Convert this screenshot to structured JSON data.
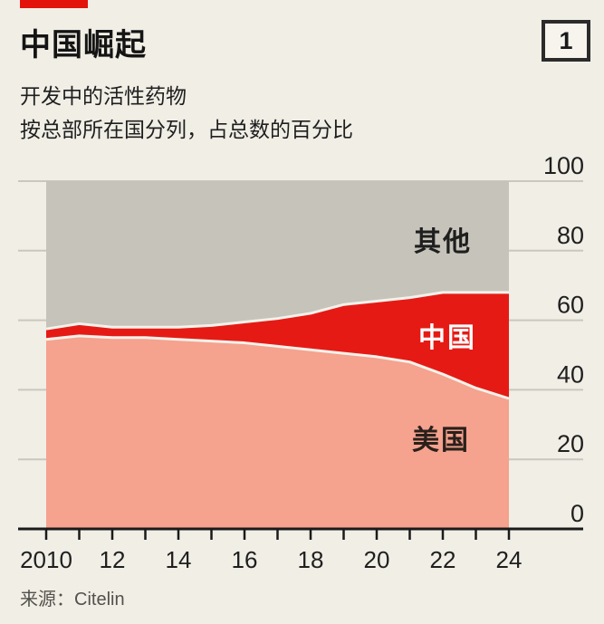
{
  "header": {
    "title": "中国崛起",
    "badge": "1"
  },
  "subtitle": {
    "line1": "开发中的活性药物",
    "line2": "按总部所在国分列，占总数的百分比"
  },
  "footer": {
    "source": "来源：Citelin"
  },
  "colors": {
    "background": "#f0eee5",
    "accent_red": "#e3120b",
    "area_us": "#f5a28f",
    "area_china": "#e61a15",
    "area_others": "#c5c3ba",
    "separator": "#f4f2ea",
    "gridline": "#c9c7bf",
    "axis": "#1a1a1a",
    "text_dark": "#1f1f1f",
    "label_on_red": "#ffffff",
    "label_on_pink": "#2a201b"
  },
  "chart_data": {
    "type": "area",
    "stacked": true,
    "title": "中国崛起",
    "subtitle": "开发中的活性药物，按总部所在国分列，占总数的百分比",
    "x": [
      2010,
      2011,
      2012,
      2013,
      2014,
      2015,
      2016,
      2017,
      2018,
      2019,
      2020,
      2021,
      2022,
      2023,
      2024
    ],
    "series": [
      {
        "key": "us",
        "name": "美国",
        "values": [
          54.5,
          55.5,
          55,
          55,
          54.5,
          54,
          53.5,
          52.5,
          51.5,
          50.5,
          49.5,
          48,
          44.5,
          40.5,
          37.5
        ]
      },
      {
        "key": "china",
        "name": "中国",
        "values": [
          3,
          3.5,
          3,
          3,
          3.5,
          4.5,
          6,
          8,
          10.5,
          14,
          16,
          18.5,
          23.5,
          27.5,
          30.5
        ]
      },
      {
        "key": "others",
        "name": "其他",
        "values": [
          42.5,
          41,
          42,
          42,
          42,
          41.5,
          40.5,
          39.5,
          38,
          35.5,
          34.5,
          33.5,
          32,
          32,
          32
        ]
      }
    ],
    "ylim": [
      0,
      100
    ],
    "yticks": [
      0,
      20,
      40,
      60,
      80,
      100
    ],
    "yaxis_side": "right",
    "xtick_labels": [
      "2010",
      "12",
      "14",
      "16",
      "18",
      "20",
      "22",
      "24"
    ],
    "grid": "horizontal",
    "legend_position": "labels-inside-areas",
    "source": "来源：Citelin"
  }
}
